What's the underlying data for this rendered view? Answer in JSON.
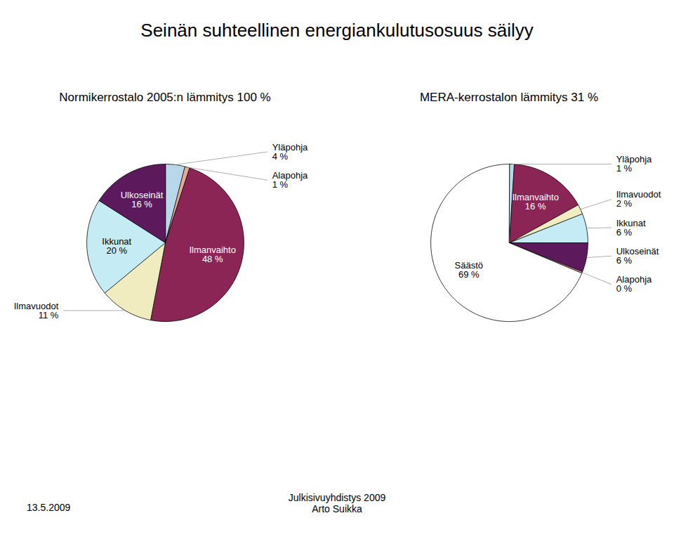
{
  "title": "Seinän suhteellinen energiankulutusosuus säilyy",
  "annotations": [
    "13.5.2009",
    "Julkisivuyhdistys 2009\nArto Suikka"
  ],
  "chart_data": [
    {
      "type": "pie",
      "subtitle": "Normikerrostalo 2005:n lämmitys 100 %",
      "categories": [
        "Yläpohja",
        "Alapohja",
        "Ilmanvaihto",
        "Ilmavuodot",
        "Ikkunat",
        "Ulkoseinät"
      ],
      "values": [
        4,
        1,
        48,
        11,
        20,
        16
      ],
      "value_labels": [
        "4 %",
        "1 %",
        "48 %",
        "11 %",
        "20 %",
        "16 %"
      ],
      "colors": [
        "#b8d8ea",
        "#e8a898",
        "#8b2555",
        "#f0ecc0",
        "#c5ecf5",
        "#5c1a5c"
      ],
      "data_labels": true
    },
    {
      "type": "pie",
      "subtitle": "MERA-kerrostalon lämmitys 31 %",
      "categories": [
        "Yläpohja",
        "Ilmanvaihto",
        "Ilmavuodot",
        "Ikkunat",
        "Ulkoseinät",
        "Alapohja",
        "Säästö"
      ],
      "values": [
        1,
        16,
        2,
        6,
        6,
        0.3,
        68.7
      ],
      "value_labels": [
        "1 %",
        "16 %",
        "2 %",
        "6 %",
        "6 %",
        "0 %",
        "69 %"
      ],
      "colors": [
        "#b8d8ea",
        "#8b2555",
        "#f0ecc0",
        "#c5ecf5",
        "#5c1a5c",
        "#e8a898",
        "#ffffff"
      ],
      "data_labels": true
    }
  ]
}
